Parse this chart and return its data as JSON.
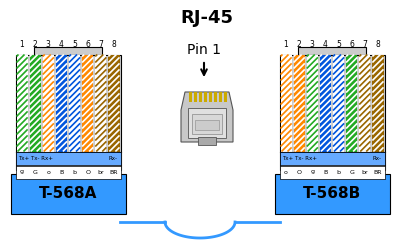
{
  "title": "RJ-45",
  "pin1_label": "Pin 1",
  "left_label": "T-568A",
  "right_label": "T-568B",
  "background": "#ffffff",
  "connector_bg": "#cccccc",
  "blue_box": "#3399ff",
  "wire_colors_left": [
    "#ffffff",
    "#22aa22",
    "#ffffff",
    "#0055dd",
    "#ffffff",
    "#ff8800",
    "#ffffff",
    "#996600"
  ],
  "wire_stripe_colors_left": [
    "#22aa22",
    "#ffffff",
    "#ff8800",
    "#ffffff",
    "#0055dd",
    "#ffffff",
    "#996600",
    "#ffffff"
  ],
  "wire_colors_right": [
    "#ffffff",
    "#ff8800",
    "#ffffff",
    "#0055dd",
    "#ffffff",
    "#22aa22",
    "#ffffff",
    "#996600"
  ],
  "wire_stripe_colors_right": [
    "#ff8800",
    "#ffffff",
    "#22aa22",
    "#ffffff",
    "#0055dd",
    "#ffffff",
    "#996600",
    "#ffffff"
  ],
  "pin_labels": [
    "1",
    "2",
    "3",
    "4",
    "5",
    "6",
    "7",
    "8"
  ],
  "left_wire_labels": [
    "g",
    "G",
    "o",
    "B",
    "b",
    "O",
    "br",
    "BR"
  ],
  "right_wire_labels": [
    "o",
    "O",
    "g",
    "B",
    "b",
    "G",
    "br",
    "BR"
  ]
}
